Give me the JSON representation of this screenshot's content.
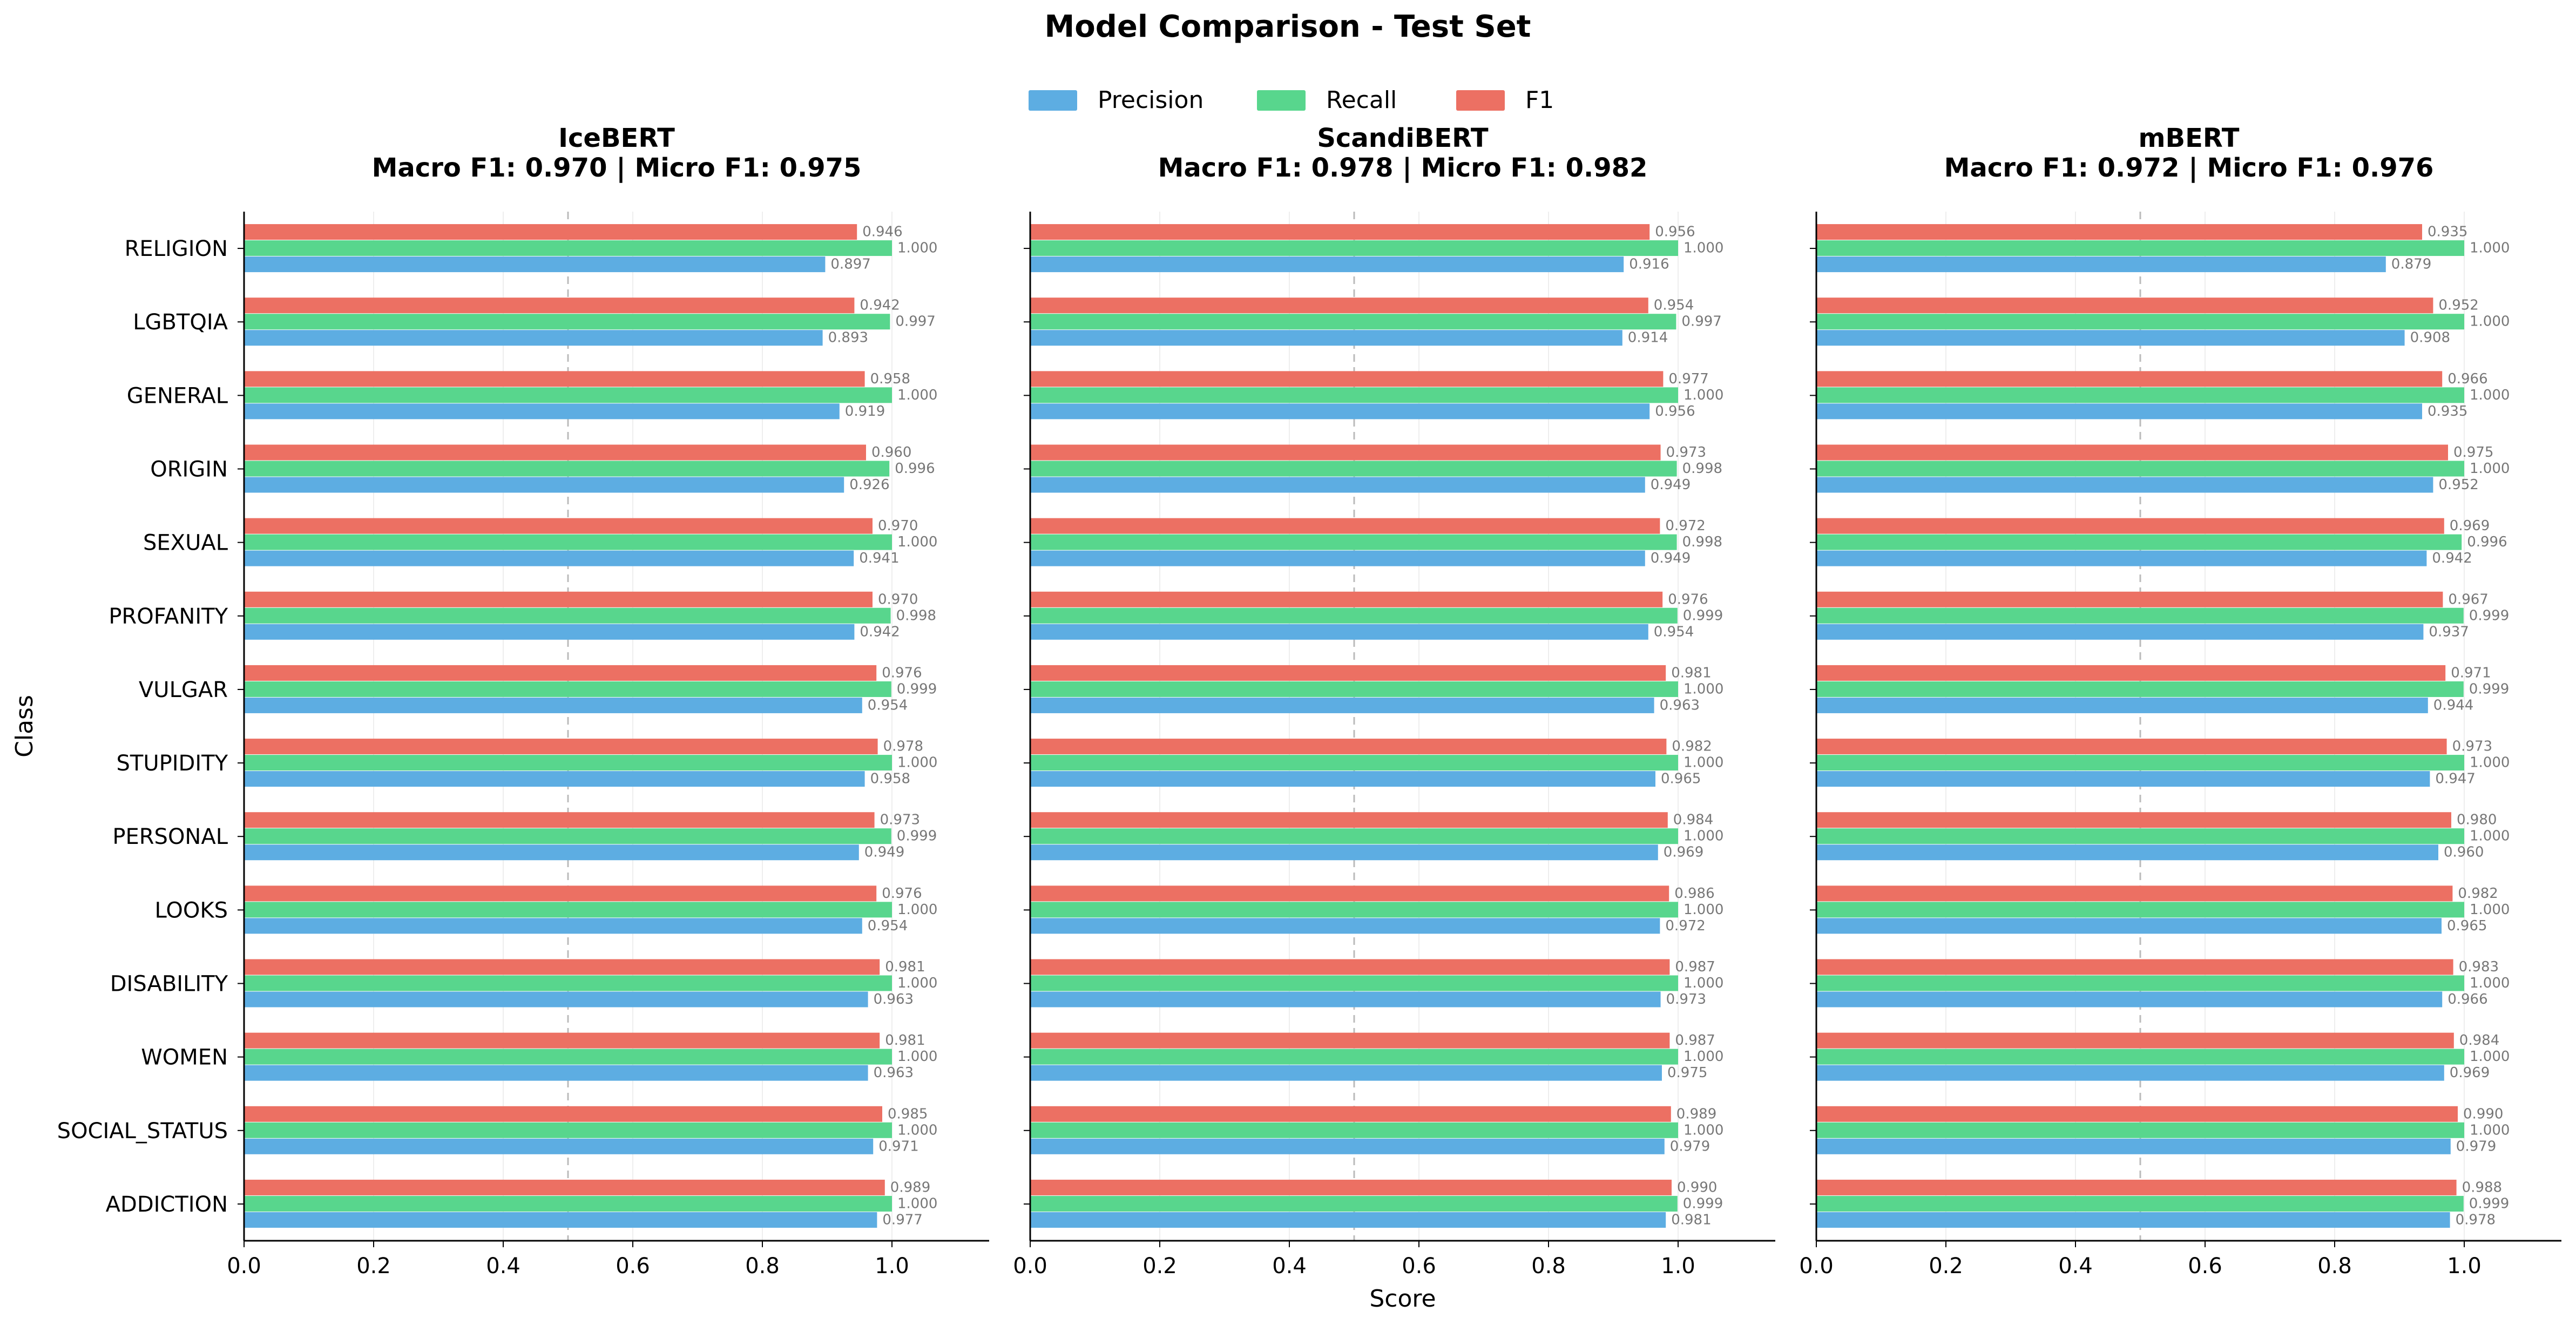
{
  "figure": {
    "title": "Model Comparison - Test Set",
    "shared_xlabel": "Score",
    "shared_ylabel": "Class"
  },
  "legend": {
    "placement": "top-center",
    "items": [
      {
        "label": "Precision",
        "color": "#5DADE2"
      },
      {
        "label": "Recall",
        "color": "#58D68D"
      },
      {
        "label": "F1",
        "color": "#EC7063"
      }
    ]
  },
  "chart_data": [
    {
      "type": "bar",
      "orientation": "horizontal",
      "title": "IceBERT",
      "subtitle": "Macro F1: 0.970 | Micro F1: 0.975",
      "xlabel": "",
      "ylabel": "Class",
      "xlim": [
        0,
        1.15
      ],
      "xticks": [
        "0.0",
        "0.2",
        "0.4",
        "0.6",
        "0.8",
        "1.0"
      ],
      "reference_line": 0.5,
      "grid": "x",
      "categories": [
        "RELIGION",
        "LGBTQIA",
        "GENERAL",
        "ORIGIN",
        "SEXUAL",
        "PROFANITY",
        "VULGAR",
        "STUPIDITY",
        "PERSONAL",
        "LOOKS",
        "DISABILITY",
        "WOMEN",
        "SOCIAL_STATUS",
        "ADDICTION"
      ],
      "series": [
        {
          "name": "Precision",
          "color": "#5DADE2",
          "values": [
            0.897,
            0.893,
            0.919,
            0.926,
            0.941,
            0.942,
            0.954,
            0.958,
            0.949,
            0.954,
            0.963,
            0.963,
            0.971,
            0.977
          ]
        },
        {
          "name": "Recall",
          "color": "#58D68D",
          "values": [
            1.0,
            0.997,
            1.0,
            0.996,
            1.0,
            0.998,
            0.999,
            1.0,
            0.999,
            1.0,
            1.0,
            1.0,
            1.0,
            1.0
          ]
        },
        {
          "name": "F1",
          "color": "#EC7063",
          "values": [
            0.946,
            0.942,
            0.958,
            0.96,
            0.97,
            0.97,
            0.976,
            0.978,
            0.973,
            0.976,
            0.981,
            0.981,
            0.985,
            0.989
          ]
        }
      ]
    },
    {
      "type": "bar",
      "orientation": "horizontal",
      "title": "ScandiBERT",
      "subtitle": "Macro F1: 0.978 | Micro F1: 0.982",
      "xlabel": "Score",
      "ylabel": "",
      "xlim": [
        0,
        1.15
      ],
      "xticks": [
        "0.0",
        "0.2",
        "0.4",
        "0.6",
        "0.8",
        "1.0"
      ],
      "reference_line": 0.5,
      "grid": "x",
      "categories": [
        "RELIGION",
        "LGBTQIA",
        "GENERAL",
        "ORIGIN",
        "SEXUAL",
        "PROFANITY",
        "VULGAR",
        "STUPIDITY",
        "PERSONAL",
        "LOOKS",
        "DISABILITY",
        "WOMEN",
        "SOCIAL_STATUS",
        "ADDICTION"
      ],
      "series": [
        {
          "name": "Precision",
          "color": "#5DADE2",
          "values": [
            0.916,
            0.914,
            0.956,
            0.949,
            0.949,
            0.954,
            0.963,
            0.965,
            0.969,
            0.972,
            0.973,
            0.975,
            0.979,
            0.981
          ]
        },
        {
          "name": "Recall",
          "color": "#58D68D",
          "values": [
            1.0,
            0.997,
            1.0,
            0.998,
            0.998,
            0.999,
            1.0,
            1.0,
            1.0,
            1.0,
            1.0,
            1.0,
            1.0,
            0.999
          ]
        },
        {
          "name": "F1",
          "color": "#EC7063",
          "values": [
            0.956,
            0.954,
            0.977,
            0.973,
            0.972,
            0.976,
            0.981,
            0.982,
            0.984,
            0.986,
            0.987,
            0.987,
            0.989,
            0.99
          ]
        }
      ]
    },
    {
      "type": "bar",
      "orientation": "horizontal",
      "title": "mBERT",
      "subtitle": "Macro F1: 0.972 | Micro F1: 0.976",
      "xlabel": "",
      "ylabel": "",
      "xlim": [
        0,
        1.15
      ],
      "xticks": [
        "0.0",
        "0.2",
        "0.4",
        "0.6",
        "0.8",
        "1.0"
      ],
      "reference_line": 0.5,
      "grid": "x",
      "categories": [
        "RELIGION",
        "LGBTQIA",
        "GENERAL",
        "ORIGIN",
        "SEXUAL",
        "PROFANITY",
        "VULGAR",
        "STUPIDITY",
        "PERSONAL",
        "LOOKS",
        "DISABILITY",
        "WOMEN",
        "SOCIAL_STATUS",
        "ADDICTION"
      ],
      "series": [
        {
          "name": "Precision",
          "color": "#5DADE2",
          "values": [
            0.879,
            0.908,
            0.935,
            0.952,
            0.942,
            0.937,
            0.944,
            0.947,
            0.96,
            0.965,
            0.966,
            0.969,
            0.979,
            0.978
          ]
        },
        {
          "name": "Recall",
          "color": "#58D68D",
          "values": [
            1.0,
            1.0,
            1.0,
            1.0,
            0.996,
            0.999,
            0.999,
            1.0,
            1.0,
            1.0,
            1.0,
            1.0,
            1.0,
            0.999
          ]
        },
        {
          "name": "F1",
          "color": "#EC7063",
          "values": [
            0.935,
            0.952,
            0.966,
            0.975,
            0.969,
            0.967,
            0.971,
            0.973,
            0.98,
            0.982,
            0.983,
            0.984,
            0.99,
            0.988
          ]
        }
      ]
    }
  ]
}
